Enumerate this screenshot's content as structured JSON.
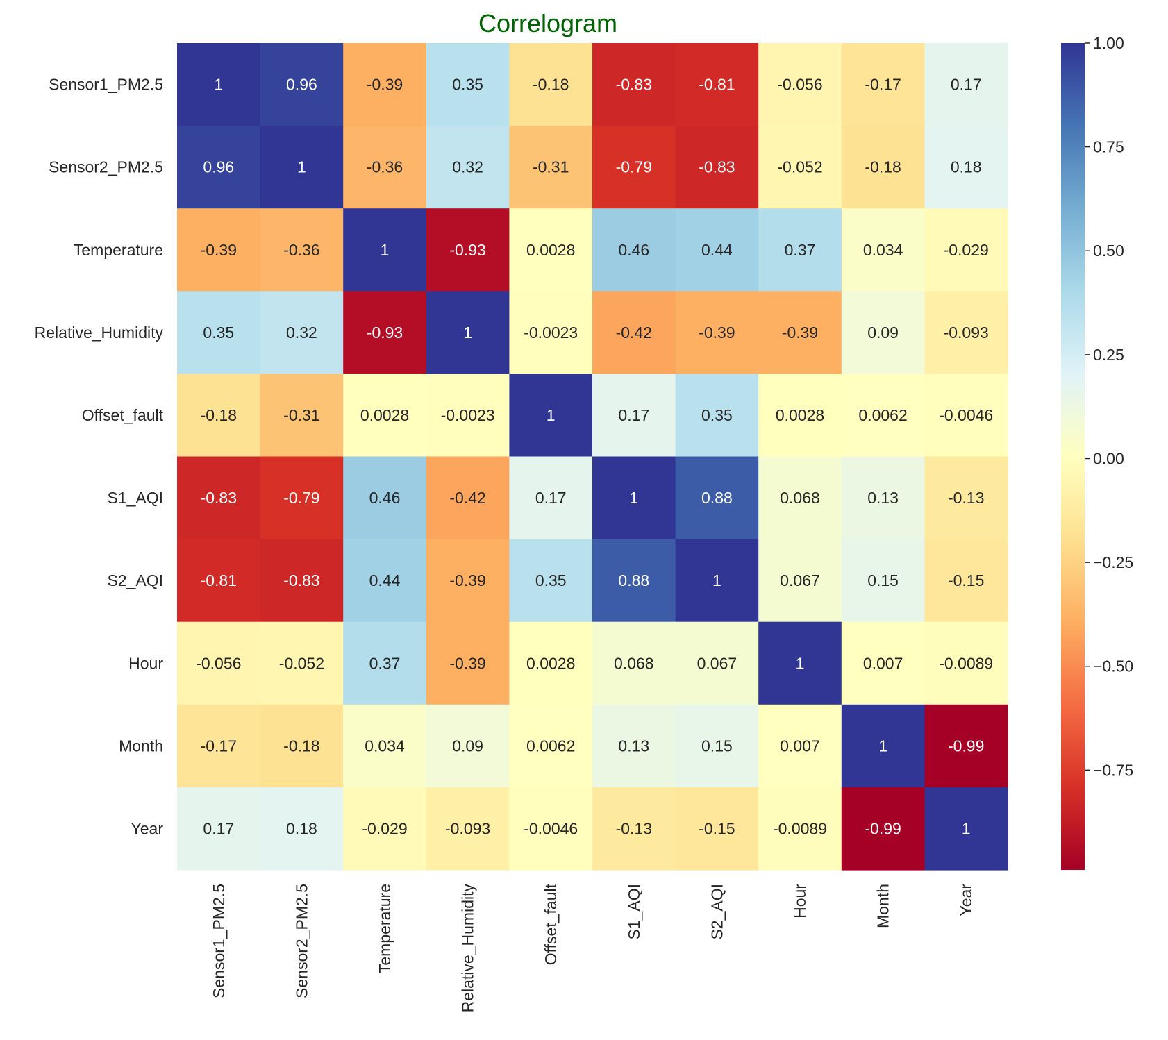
{
  "chart_data": {
    "type": "heatmap",
    "title": "Correlogram",
    "row_labels": [
      "Sensor1_PM2.5",
      "Sensor2_PM2.5",
      "Temperature",
      "Relative_Humidity",
      "Offset_fault",
      "S1_AQI",
      "S2_AQI",
      "Hour",
      "Month",
      "Year"
    ],
    "col_labels": [
      "Sensor1_PM2.5",
      "Sensor2_PM2.5",
      "Temperature",
      "Relative_Humidity",
      "Offset_fault",
      "S1_AQI",
      "S2_AQI",
      "Hour",
      "Month",
      "Year"
    ],
    "values": [
      [
        1,
        0.96,
        -0.39,
        0.35,
        -0.18,
        -0.83,
        -0.81,
        -0.056,
        -0.17,
        0.17
      ],
      [
        0.96,
        1,
        -0.36,
        0.32,
        -0.31,
        -0.79,
        -0.83,
        -0.052,
        -0.18,
        0.18
      ],
      [
        -0.39,
        -0.36,
        1,
        -0.93,
        0.0028,
        0.46,
        0.44,
        0.37,
        0.034,
        -0.029
      ],
      [
        0.35,
        0.32,
        -0.93,
        1,
        -0.0023,
        -0.42,
        -0.39,
        -0.39,
        0.09,
        -0.093
      ],
      [
        -0.18,
        -0.31,
        0.0028,
        -0.0023,
        1,
        0.17,
        0.35,
        0.0028,
        0.0062,
        -0.0046
      ],
      [
        -0.83,
        -0.79,
        0.46,
        -0.42,
        0.17,
        1,
        0.88,
        0.068,
        0.13,
        -0.13
      ],
      [
        -0.81,
        -0.83,
        0.44,
        -0.39,
        0.35,
        0.88,
        1,
        0.067,
        0.15,
        -0.15
      ],
      [
        -0.056,
        -0.052,
        0.37,
        -0.39,
        0.0028,
        0.068,
        0.067,
        1,
        0.007,
        -0.0089
      ],
      [
        -0.17,
        -0.18,
        0.034,
        0.09,
        0.0062,
        0.13,
        0.15,
        0.007,
        1,
        -0.99
      ],
      [
        0.17,
        0.18,
        -0.029,
        -0.093,
        -0.0046,
        -0.13,
        -0.15,
        -0.0089,
        -0.99,
        1
      ]
    ],
    "cell_labels": [
      [
        "1",
        "0.96",
        "-0.39",
        "0.35",
        "-0.18",
        "-0.83",
        "-0.81",
        "-0.056",
        "-0.17",
        "0.17"
      ],
      [
        "0.96",
        "1",
        "-0.36",
        "0.32",
        "-0.31",
        "-0.79",
        "-0.83",
        "-0.052",
        "-0.18",
        "0.18"
      ],
      [
        "-0.39",
        "-0.36",
        "1",
        "-0.93",
        "0.0028",
        "0.46",
        "0.44",
        "0.37",
        "0.034",
        "-0.029"
      ],
      [
        "0.35",
        "0.32",
        "-0.93",
        "1",
        "-0.0023",
        "-0.42",
        "-0.39",
        "-0.39",
        "0.09",
        "-0.093"
      ],
      [
        "-0.18",
        "-0.31",
        "0.0028",
        "-0.0023",
        "1",
        "0.17",
        "0.35",
        "0.0028",
        "0.0062",
        "-0.0046"
      ],
      [
        "-0.83",
        "-0.79",
        "0.46",
        "-0.42",
        "0.17",
        "1",
        "0.88",
        "0.068",
        "0.13",
        "-0.13"
      ],
      [
        "-0.81",
        "-0.83",
        "0.44",
        "-0.39",
        "0.35",
        "0.88",
        "1",
        "0.067",
        "0.15",
        "-0.15"
      ],
      [
        "-0.056",
        "-0.052",
        "0.37",
        "-0.39",
        "0.0028",
        "0.068",
        "0.067",
        "1",
        "0.007",
        "-0.0089"
      ],
      [
        "-0.17",
        "-0.18",
        "0.034",
        "0.09",
        "0.0062",
        "0.13",
        "0.15",
        "0.007",
        "1",
        "-0.99"
      ],
      [
        "0.17",
        "0.18",
        "-0.029",
        "-0.093",
        "-0.0046",
        "-0.13",
        "-0.15",
        "-0.0089",
        "-0.99",
        "1"
      ]
    ],
    "colormap": "RdYlBu",
    "colormap_stops": [
      "#a50026",
      "#d73027",
      "#f46d43",
      "#fdae61",
      "#fee090",
      "#ffffbf",
      "#e0f3f8",
      "#abd9e9",
      "#74add1",
      "#4575b4",
      "#313695"
    ],
    "vmin": -0.99,
    "vmax": 1.0,
    "colorbar": {
      "ticks": [
        1.0,
        0.75,
        0.5,
        0.25,
        0.0,
        -0.25,
        -0.5,
        -0.75
      ],
      "tick_labels": [
        "1.00",
        "0.75",
        "0.50",
        "0.25",
        "0.00",
        "−0.25",
        "−0.50",
        "−0.75"
      ]
    },
    "title_color": "#006400",
    "grid": false,
    "legend": "colorbar-right"
  }
}
